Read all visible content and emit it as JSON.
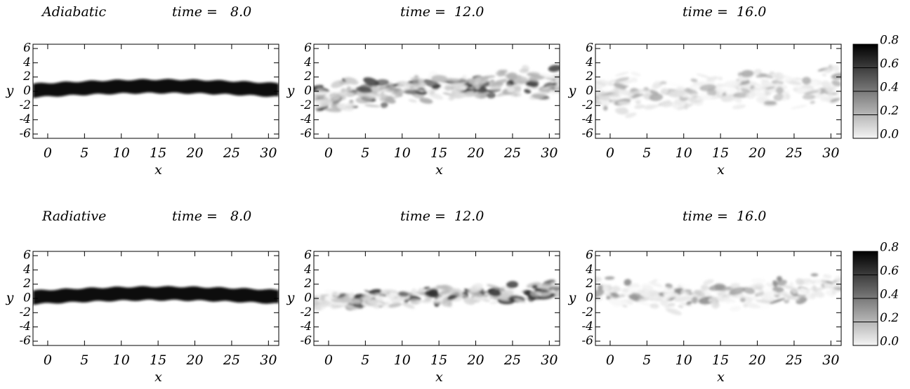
{
  "chart_data": [
    {
      "type": "heatmap",
      "label": "Adiabatic",
      "title": "time =   8.0",
      "xlabel": "x",
      "ylabel": "y",
      "xlim": [
        -2,
        31.4
      ],
      "ylim": [
        -6.6,
        6.6
      ],
      "xticks": [
        0,
        5,
        10,
        15,
        20,
        25,
        30
      ],
      "yticks": [
        -6,
        -4,
        -2,
        0,
        2,
        4,
        6
      ]
    },
    {
      "type": "heatmap",
      "title": "time =  12.0",
      "xlabel": "x",
      "ylabel": "y",
      "xlim": [
        -2,
        31.4
      ],
      "ylim": [
        -6.6,
        6.6
      ],
      "xticks": [
        0,
        5,
        10,
        15,
        20,
        25,
        30
      ],
      "yticks": [
        -6,
        -4,
        -2,
        0,
        2,
        4,
        6
      ]
    },
    {
      "type": "heatmap",
      "title": "time =  16.0",
      "xlabel": "x",
      "ylabel": "y",
      "xlim": [
        -2,
        31.4
      ],
      "ylim": [
        -6.6,
        6.6
      ],
      "xticks": [
        0,
        5,
        10,
        15,
        20,
        25,
        30
      ],
      "yticks": [
        -6,
        -4,
        -2,
        0,
        2,
        4,
        6
      ],
      "colorbar": {
        "lim": [
          0,
          0.8
        ],
        "ticks": [
          {
            "value": 0,
            "label": "0.0"
          },
          {
            "value": 0.2,
            "label": "0.2"
          },
          {
            "value": 0.4,
            "label": "0.4"
          },
          {
            "value": 0.6,
            "label": "0.6"
          },
          {
            "value": 0.8,
            "label": "0.8"
          }
        ]
      }
    },
    {
      "type": "heatmap",
      "label": "Radiative",
      "title": "time =   8.0",
      "xlabel": "x",
      "ylabel": "y",
      "xlim": [
        -2,
        31.4
      ],
      "ylim": [
        -6.6,
        6.6
      ],
      "xticks": [
        0,
        5,
        10,
        15,
        20,
        25,
        30
      ],
      "yticks": [
        -6,
        -4,
        -2,
        0,
        2,
        4,
        6
      ]
    },
    {
      "type": "heatmap",
      "title": "time =  12.0",
      "xlabel": "x",
      "ylabel": "y",
      "xlim": [
        -2,
        31.4
      ],
      "ylim": [
        -6.6,
        6.6
      ],
      "xticks": [
        0,
        5,
        10,
        15,
        20,
        25,
        30
      ],
      "yticks": [
        -6,
        -4,
        -2,
        0,
        2,
        4,
        6
      ]
    },
    {
      "type": "heatmap",
      "title": "time =  16.0",
      "xlabel": "x",
      "ylabel": "y",
      "xlim": [
        -2,
        31.4
      ],
      "ylim": [
        -6.6,
        6.6
      ],
      "xticks": [
        0,
        5,
        10,
        15,
        20,
        25,
        30
      ],
      "yticks": [
        -6,
        -4,
        -2,
        0,
        2,
        4,
        6
      ],
      "colorbar": {
        "lim": [
          0,
          0.8
        ],
        "ticks": [
          {
            "value": 0,
            "label": "0.0"
          },
          {
            "value": 0.2,
            "label": "0.2"
          },
          {
            "value": 0.4,
            "label": "0.4"
          },
          {
            "value": 0.6,
            "label": "0.6"
          },
          {
            "value": 0.8,
            "label": "0.8"
          }
        ]
      }
    }
  ]
}
